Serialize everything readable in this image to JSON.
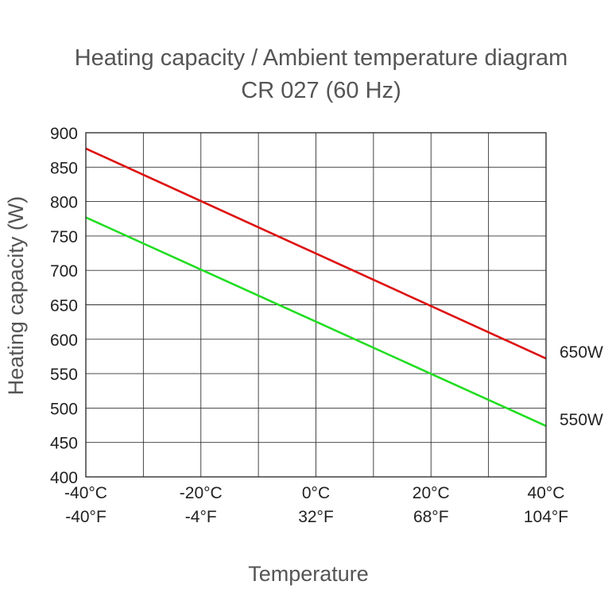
{
  "chart_data": {
    "type": "line",
    "title": "Heating capacity / Ambient temperature diagram",
    "subtitle": "CR 027 (60 Hz)",
    "xlabel": "Temperature",
    "ylabel": "Heating capacity (W)",
    "xlim": [
      -40,
      40
    ],
    "ylim": [
      400,
      900
    ],
    "yticks": [
      400,
      450,
      500,
      550,
      600,
      650,
      700,
      750,
      800,
      850,
      900
    ],
    "xgrid": [
      -40,
      -30,
      -20,
      -10,
      0,
      10,
      20,
      30,
      40
    ],
    "xticks": [
      {
        "value": -40,
        "celsius": "-40°C",
        "fahrenheit": "-40°F"
      },
      {
        "value": -20,
        "celsius": "-20°C",
        "fahrenheit": "-4°F"
      },
      {
        "value": 0,
        "celsius": "0°C",
        "fahrenheit": "32°F"
      },
      {
        "value": 20,
        "celsius": "20°C",
        "fahrenheit": "68°F"
      },
      {
        "value": 40,
        "celsius": "40°C",
        "fahrenheit": "104°F"
      }
    ],
    "grid": true,
    "legend": "inline-right",
    "series": [
      {
        "name": "650W",
        "color": "#dd1111",
        "x": [
          -40,
          40
        ],
        "y": [
          877,
          572
        ]
      },
      {
        "name": "550W",
        "color": "#22dd22",
        "x": [
          -40,
          40
        ],
        "y": [
          777,
          474
        ]
      }
    ]
  }
}
